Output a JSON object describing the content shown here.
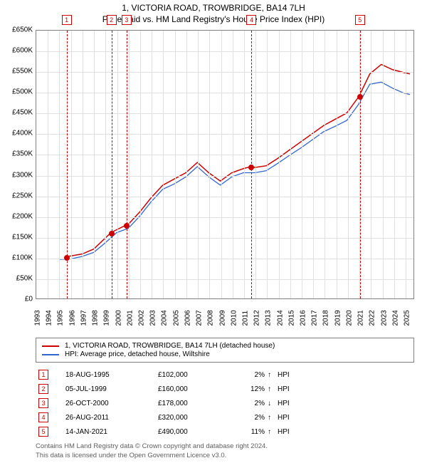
{
  "title": "1, VICTORIA ROAD, TROWBRIDGE, BA14 7LH",
  "subtitle": "Price paid vs. HM Land Registry's House Price Index (HPI)",
  "chart": {
    "type": "line",
    "xlim": [
      1993,
      2025.8
    ],
    "ylim": [
      0,
      650000
    ],
    "ytick_step": 50000,
    "ytick_prefix": "£",
    "ytick_suffix": "K",
    "xticks": [
      1993,
      1994,
      1995,
      1996,
      1997,
      1998,
      1999,
      2000,
      2001,
      2002,
      2003,
      2004,
      2005,
      2006,
      2007,
      2008,
      2009,
      2010,
      2011,
      2012,
      2013,
      2014,
      2015,
      2016,
      2017,
      2018,
      2019,
      2020,
      2021,
      2022,
      2023,
      2024,
      2025
    ],
    "background_color": "#ffffff",
    "grid_color": "#e0e0e0",
    "border_color": "#808080",
    "title_fontsize": 12,
    "label_fontsize": 10,
    "series": [
      {
        "name": "property",
        "label": "1, VICTORIA ROAD, TROWBRIDGE, BA14 7LH (detached house)",
        "color": "#cc0000",
        "line_width": 1.5,
        "points": [
          [
            1995.6,
            102000
          ],
          [
            1996,
            103000
          ],
          [
            1997,
            108000
          ],
          [
            1998,
            120000
          ],
          [
            1999.5,
            160000
          ],
          [
            2000.8,
            178000
          ],
          [
            2001,
            180000
          ],
          [
            2002,
            210000
          ],
          [
            2003,
            245000
          ],
          [
            2004,
            275000
          ],
          [
            2005,
            290000
          ],
          [
            2006,
            305000
          ],
          [
            2007,
            330000
          ],
          [
            2008,
            305000
          ],
          [
            2009,
            285000
          ],
          [
            2010,
            305000
          ],
          [
            2011,
            315000
          ],
          [
            2011.65,
            320000
          ],
          [
            2012,
            318000
          ],
          [
            2013,
            322000
          ],
          [
            2014,
            340000
          ],
          [
            2015,
            360000
          ],
          [
            2016,
            380000
          ],
          [
            2017,
            400000
          ],
          [
            2018,
            420000
          ],
          [
            2019,
            435000
          ],
          [
            2020,
            450000
          ],
          [
            2021.05,
            490000
          ],
          [
            2022,
            545000
          ],
          [
            2023,
            568000
          ],
          [
            2024,
            555000
          ],
          [
            2025,
            548000
          ],
          [
            2025.5,
            545000
          ]
        ]
      },
      {
        "name": "hpi",
        "label": "HPI: Average price, detached house, Wiltshire",
        "color": "#3366cc",
        "line_width": 1.3,
        "points": [
          [
            1995,
            95000
          ],
          [
            1996,
            96000
          ],
          [
            1997,
            102000
          ],
          [
            1998,
            112000
          ],
          [
            1999,
            135000
          ],
          [
            2000,
            160000
          ],
          [
            2001,
            170000
          ],
          [
            2002,
            200000
          ],
          [
            2003,
            235000
          ],
          [
            2004,
            265000
          ],
          [
            2005,
            278000
          ],
          [
            2006,
            295000
          ],
          [
            2007,
            320000
          ],
          [
            2008,
            295000
          ],
          [
            2009,
            275000
          ],
          [
            2010,
            295000
          ],
          [
            2011,
            305000
          ],
          [
            2012,
            305000
          ],
          [
            2013,
            310000
          ],
          [
            2014,
            328000
          ],
          [
            2015,
            347000
          ],
          [
            2016,
            365000
          ],
          [
            2017,
            385000
          ],
          [
            2018,
            405000
          ],
          [
            2019,
            418000
          ],
          [
            2020,
            432000
          ],
          [
            2021,
            470000
          ],
          [
            2022,
            520000
          ],
          [
            2023,
            525000
          ],
          [
            2024,
            510000
          ],
          [
            2025,
            498000
          ],
          [
            2025.5,
            495000
          ]
        ]
      }
    ],
    "markers": [
      {
        "n": 1,
        "x": 1995.63,
        "y": 102000
      },
      {
        "n": 2,
        "x": 1999.51,
        "y": 160000
      },
      {
        "n": 3,
        "x": 2000.82,
        "y": 178000
      },
      {
        "n": 4,
        "x": 2011.65,
        "y": 320000
      },
      {
        "n": 5,
        "x": 2021.04,
        "y": 490000
      }
    ]
  },
  "legend": {
    "items": [
      {
        "color": "#cc0000",
        "label": "1, VICTORIA ROAD, TROWBRIDGE, BA14 7LH (detached house)"
      },
      {
        "color": "#3366cc",
        "label": "HPI: Average price, detached house, Wiltshire"
      }
    ]
  },
  "transactions": [
    {
      "n": "1",
      "date": "18-AUG-1995",
      "price": "£102,000",
      "pct": "2%",
      "arrow": "↑",
      "ref": "HPI"
    },
    {
      "n": "2",
      "date": "05-JUL-1999",
      "price": "£160,000",
      "pct": "12%",
      "arrow": "↑",
      "ref": "HPI"
    },
    {
      "n": "3",
      "date": "26-OCT-2000",
      "price": "£178,000",
      "pct": "2%",
      "arrow": "↓",
      "ref": "HPI"
    },
    {
      "n": "4",
      "date": "26-AUG-2011",
      "price": "£320,000",
      "pct": "2%",
      "arrow": "↑",
      "ref": "HPI"
    },
    {
      "n": "5",
      "date": "14-JAN-2021",
      "price": "£490,000",
      "pct": "11%",
      "arrow": "↑",
      "ref": "HPI"
    }
  ],
  "footer": {
    "line1": "Contains HM Land Registry data © Crown copyright and database right 2024.",
    "line2": "This data is licensed under the Open Government Licence v3.0."
  }
}
